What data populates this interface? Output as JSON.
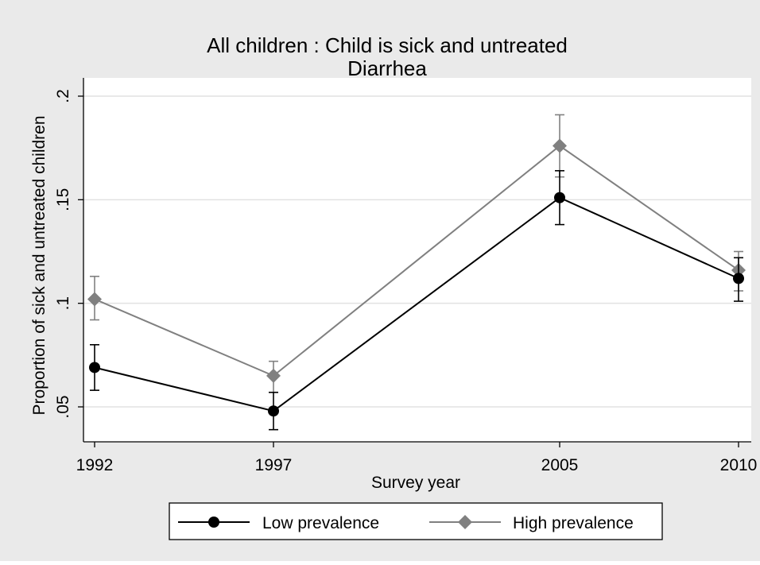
{
  "chart_data": {
    "type": "line",
    "title": "All children : Child is sick and untreated",
    "subtitle": "Diarrhea",
    "xlabel": "Survey year",
    "ylabel": "Proportion of sick and untreated children",
    "x": [
      1992,
      1997,
      2005,
      2010
    ],
    "x_tick_labels": [
      "1992",
      "1997",
      "2005",
      "2010"
    ],
    "xlim": [
      1992,
      2010
    ],
    "y_ticks": [
      0.05,
      0.1,
      0.15,
      0.2
    ],
    "y_tick_labels": [
      ".05",
      ".1",
      ".15",
      ".2"
    ],
    "ylim": [
      0.035,
      0.2
    ],
    "grid": true,
    "legend_position": "bottom",
    "series": [
      {
        "name": "Low prevalence",
        "color": "#000000",
        "marker": "circle",
        "values": [
          0.069,
          0.048,
          0.151,
          0.112
        ],
        "ci_low": [
          0.058,
          0.039,
          0.138,
          0.101
        ],
        "ci_high": [
          0.08,
          0.057,
          0.164,
          0.122
        ]
      },
      {
        "name": "High prevalence",
        "color": "#808080",
        "marker": "diamond",
        "values": [
          0.102,
          0.065,
          0.176,
          0.116
        ],
        "ci_low": [
          0.092,
          0.057,
          0.161,
          0.106
        ],
        "ci_high": [
          0.113,
          0.072,
          0.191,
          0.125
        ]
      }
    ]
  },
  "colors": {
    "outer_background": "#eaeaea",
    "plot_background": "#ffffff",
    "grid": "#e2e2e2",
    "axis": "#000000"
  }
}
